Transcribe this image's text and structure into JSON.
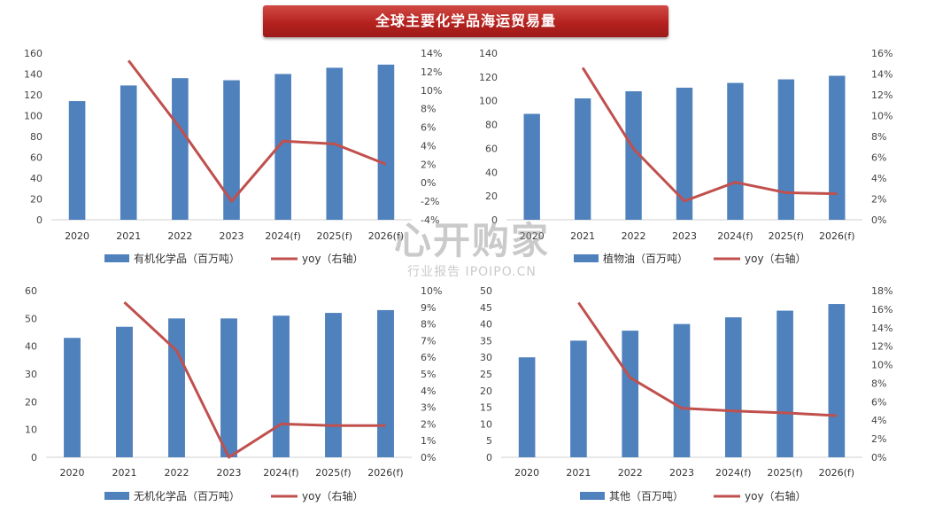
{
  "title": "全球主要化学品海运贸易量",
  "watermark": {
    "main": "心开购家",
    "sub": "行业报告 IPOIPO.CN"
  },
  "colors": {
    "bar": "#4f81bd",
    "line": "#c0504d"
  },
  "chart_data": [
    {
      "type": "bar",
      "categories": [
        "2020",
        "2021",
        "2022",
        "2023",
        "2024(f)",
        "2025(f)",
        "2026(f)"
      ],
      "series": [
        {
          "name": "有机化学品（百万吨）",
          "type": "bar",
          "axis": "left",
          "values": [
            114,
            129,
            136,
            134,
            140,
            146,
            149
          ]
        },
        {
          "name": "yoy（右轴）",
          "type": "line",
          "axis": "right",
          "values": [
            null,
            13.2,
            5.9,
            -2.0,
            4.5,
            4.2,
            2.0
          ]
        }
      ],
      "ylim": [
        0,
        160
      ],
      "y_ticks": [
        "0",
        "20",
        "40",
        "60",
        "80",
        "100",
        "120",
        "140",
        "160"
      ],
      "y2lim": [
        -4,
        14
      ],
      "y2_ticks": [
        "-4%",
        "-2%",
        "0%",
        "2%",
        "4%",
        "6%",
        "8%",
        "10%",
        "12%",
        "14%"
      ],
      "legend": "bottom"
    },
    {
      "type": "bar",
      "categories": [
        "2020",
        "2021",
        "2022",
        "2023",
        "2024(f)",
        "2025(f)",
        "2026(f)"
      ],
      "series": [
        {
          "name": "植物油（百万吨）",
          "type": "bar",
          "axis": "left",
          "values": [
            89,
            102,
            108,
            111,
            115,
            118,
            121
          ]
        },
        {
          "name": "yoy（右轴）",
          "type": "line",
          "axis": "right",
          "values": [
            null,
            14.6,
            6.8,
            1.8,
            3.6,
            2.6,
            2.5
          ]
        }
      ],
      "ylim": [
        0,
        140
      ],
      "y_ticks": [
        "0",
        "20",
        "40",
        "60",
        "80",
        "100",
        "120",
        "140"
      ],
      "y2lim": [
        0,
        16
      ],
      "y2_ticks": [
        "0%",
        "2%",
        "4%",
        "6%",
        "8%",
        "10%",
        "12%",
        "14%",
        "16%"
      ],
      "legend": "bottom"
    },
    {
      "type": "bar",
      "categories": [
        "2020",
        "2021",
        "2022",
        "2023",
        "2024(f)",
        "2025(f)",
        "2026(f)"
      ],
      "series": [
        {
          "name": "无机化学品（百万吨）",
          "type": "bar",
          "axis": "left",
          "values": [
            43,
            47,
            50,
            50,
            51,
            52,
            53
          ]
        },
        {
          "name": "yoy（右轴）",
          "type": "line",
          "axis": "right",
          "values": [
            null,
            9.3,
            6.4,
            0.0,
            2.0,
            1.9,
            1.9
          ]
        }
      ],
      "ylim": [
        0,
        60
      ],
      "y_ticks": [
        "0",
        "10",
        "20",
        "30",
        "40",
        "50",
        "60"
      ],
      "y2lim": [
        0,
        10
      ],
      "y2_ticks": [
        "0%",
        "1%",
        "2%",
        "3%",
        "4%",
        "5%",
        "6%",
        "7%",
        "8%",
        "9%",
        "10%"
      ],
      "legend": "bottom"
    },
    {
      "type": "bar",
      "categories": [
        "2020",
        "2021",
        "2022",
        "2023",
        "2024(f)",
        "2025(f)",
        "2026(f)"
      ],
      "series": [
        {
          "name": "其他（百万吨）",
          "type": "bar",
          "axis": "left",
          "values": [
            30,
            35,
            38,
            40,
            42,
            44,
            46
          ]
        },
        {
          "name": "yoy（右轴）",
          "type": "line",
          "axis": "right",
          "values": [
            null,
            16.7,
            8.6,
            5.3,
            5.0,
            4.8,
            4.5
          ]
        }
      ],
      "ylim": [
        0,
        50
      ],
      "y_ticks": [
        "0",
        "5",
        "10",
        "15",
        "20",
        "25",
        "30",
        "35",
        "40",
        "45",
        "50"
      ],
      "y2lim": [
        0,
        18
      ],
      "y2_ticks": [
        "0%",
        "2%",
        "4%",
        "6%",
        "8%",
        "10%",
        "12%",
        "14%",
        "16%",
        "18%"
      ],
      "legend": "bottom"
    }
  ]
}
